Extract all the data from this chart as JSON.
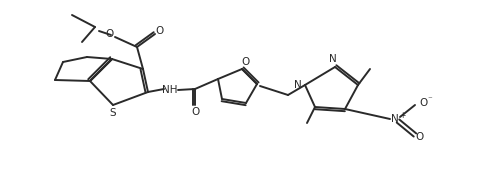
{
  "bg_color": "#ffffff",
  "line_color": "#2a2a2a",
  "line_width": 1.4,
  "font_size": 7.5,
  "figsize": [
    5.0,
    1.77
  ],
  "dpi": 100,
  "xlim": [
    0,
    500
  ],
  "ylim": [
    0,
    177
  ]
}
